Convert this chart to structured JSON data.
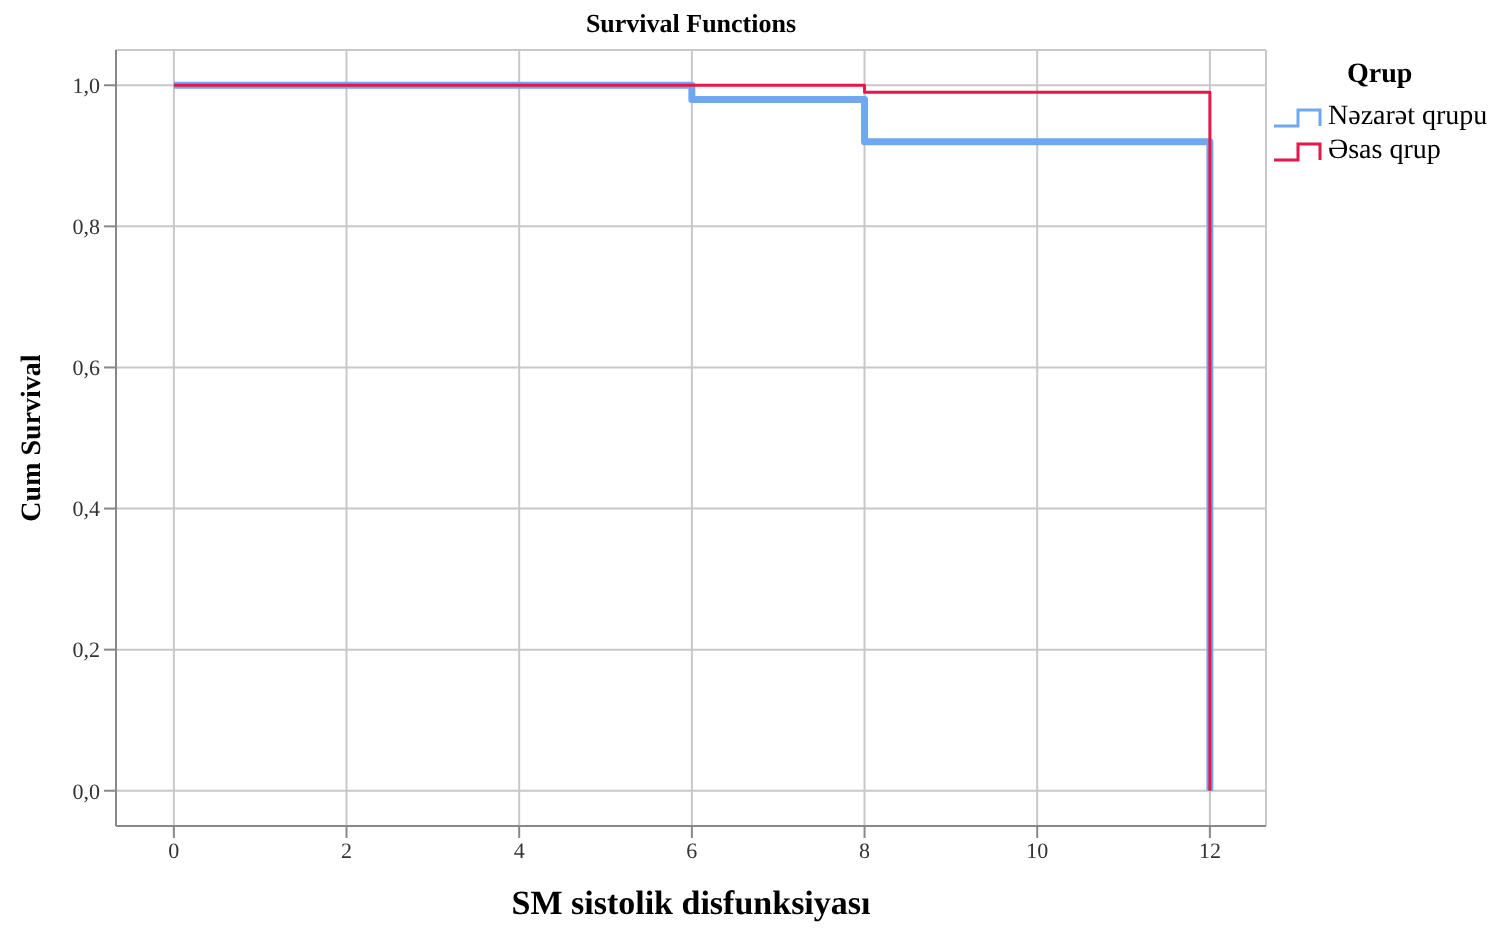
{
  "chart_data": {
    "type": "step",
    "title": "Survival Functions",
    "xlabel": "SM sistolik disfunksiyası",
    "ylabel": "Cum Survival",
    "legend_title": "Qrup",
    "legend": "top right",
    "grid": true,
    "xlim": [
      -0.67,
      12.65
    ],
    "xticks": [
      0,
      2,
      4,
      6,
      8,
      10,
      12
    ],
    "ylim": [
      -0.05,
      1.05
    ],
    "yticks": [
      {
        "value": 0,
        "label": "0,0"
      },
      {
        "value": 0.2,
        "label": "0,2"
      },
      {
        "value": 0.4,
        "label": "0,4"
      },
      {
        "value": 0.6,
        "label": "0,6"
      },
      {
        "value": 0.8,
        "label": "0,8"
      },
      {
        "value": 1,
        "label": "1,0"
      }
    ],
    "series": [
      {
        "name": "Nəzarət qrupu",
        "color": "#6fa8f0",
        "x": [
          0,
          6,
          8,
          12,
          12
        ],
        "values": [
          1,
          0.98,
          0.92,
          0.92,
          0
        ]
      },
      {
        "name": "Əsas qrup",
        "color": "#e8174a",
        "x": [
          0,
          8,
          12,
          12
        ],
        "values": [
          1,
          0.99,
          0.99,
          0
        ]
      }
    ]
  }
}
